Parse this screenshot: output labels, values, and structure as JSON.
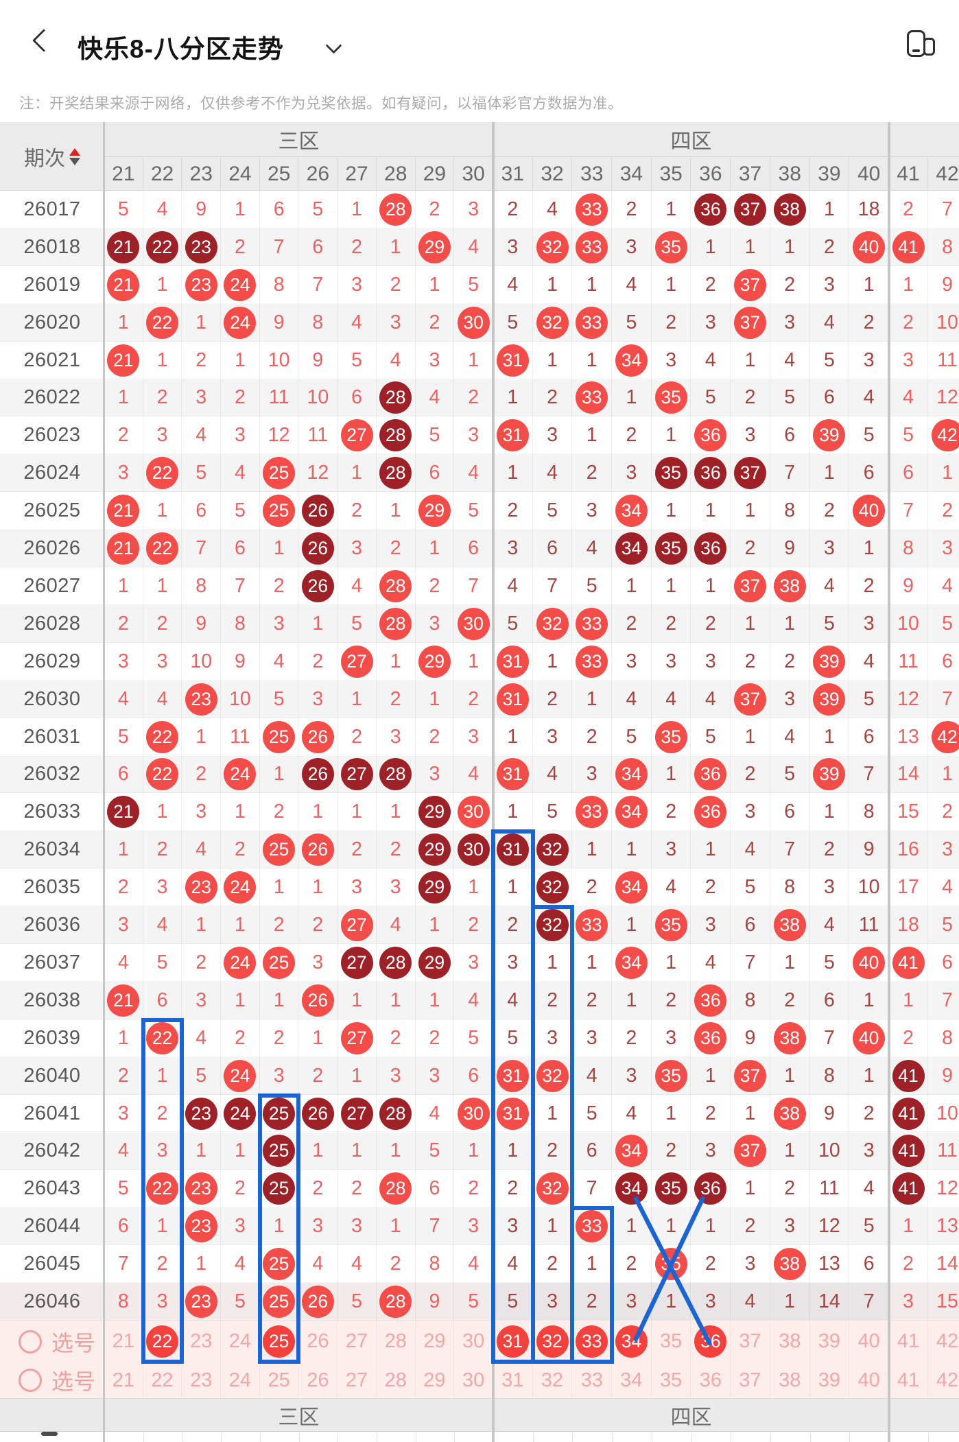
{
  "topbar": {
    "title": "快乐8-八分区走势",
    "back_icon": "chevron-left",
    "dropdown_icon": "chevron-down",
    "window_icon": "floating-window"
  },
  "note": "注：开奖结果来源于网络，仅供参考不作为兑奖依据。如有疑问，以福体彩官方数据为准。",
  "table": {
    "period_header": "期次",
    "sort_icon": "sort-up-down",
    "zone_headers": [
      {
        "label": "三区",
        "col_start": 21,
        "col_end": 30
      },
      {
        "label": "四区",
        "col_start": 31,
        "col_end": 40
      },
      {
        "label": "",
        "col_start": 41,
        "col_end": 42
      }
    ],
    "columns": [
      21,
      22,
      23,
      24,
      25,
      26,
      27,
      28,
      29,
      30,
      31,
      32,
      33,
      34,
      35,
      36,
      37,
      38,
      39,
      40,
      41,
      42
    ],
    "cell_legend": "plain string = omission count; B## = drawn ball (bright red); D## = drawn ball (dark red); S## = selected ball",
    "rows": [
      {
        "period": "26017",
        "cells": [
          "5",
          "4",
          "9",
          "1",
          "6",
          "5",
          "1",
          "B28",
          "2",
          "3",
          "2",
          "4",
          "B33",
          "2",
          "1",
          "D36",
          "D37",
          "D38",
          "1",
          "18",
          "2",
          "7"
        ]
      },
      {
        "period": "26018",
        "cells": [
          "D21",
          "D22",
          "D23",
          "2",
          "7",
          "6",
          "2",
          "1",
          "B29",
          "4",
          "3",
          "B32",
          "B33",
          "3",
          "B35",
          "1",
          "1",
          "1",
          "2",
          "B40",
          "B41",
          "8"
        ]
      },
      {
        "period": "26019",
        "cells": [
          "B21",
          "1",
          "B23",
          "B24",
          "8",
          "7",
          "3",
          "2",
          "1",
          "5",
          "4",
          "1",
          "1",
          "4",
          "1",
          "2",
          "B37",
          "2",
          "3",
          "1",
          "1",
          "9"
        ]
      },
      {
        "period": "26020",
        "cells": [
          "1",
          "B22",
          "1",
          "B24",
          "9",
          "8",
          "4",
          "3",
          "2",
          "B30",
          "5",
          "B32",
          "B33",
          "5",
          "2",
          "3",
          "B37",
          "3",
          "4",
          "2",
          "2",
          "10"
        ]
      },
      {
        "period": "26021",
        "cells": [
          "B21",
          "1",
          "2",
          "1",
          "10",
          "9",
          "5",
          "4",
          "3",
          "1",
          "B31",
          "1",
          "1",
          "B34",
          "3",
          "4",
          "1",
          "4",
          "5",
          "3",
          "3",
          "11"
        ]
      },
      {
        "period": "26022",
        "cells": [
          "1",
          "2",
          "3",
          "2",
          "11",
          "10",
          "6",
          "D28",
          "4",
          "2",
          "1",
          "2",
          "B33",
          "1",
          "B35",
          "5",
          "2",
          "5",
          "6",
          "4",
          "4",
          "12"
        ]
      },
      {
        "period": "26023",
        "cells": [
          "2",
          "3",
          "4",
          "3",
          "12",
          "11",
          "B27",
          "D28",
          "5",
          "3",
          "B31",
          "3",
          "1",
          "2",
          "1",
          "B36",
          "3",
          "6",
          "B39",
          "5",
          "5",
          "B42"
        ]
      },
      {
        "period": "26024",
        "cells": [
          "3",
          "B22",
          "5",
          "4",
          "B25",
          "12",
          "1",
          "D28",
          "6",
          "4",
          "1",
          "4",
          "2",
          "3",
          "D35",
          "D36",
          "D37",
          "7",
          "1",
          "6",
          "6",
          "1"
        ]
      },
      {
        "period": "26025",
        "cells": [
          "B21",
          "1",
          "6",
          "5",
          "B25",
          "D26",
          "2",
          "1",
          "B29",
          "5",
          "2",
          "5",
          "3",
          "B34",
          "1",
          "1",
          "1",
          "8",
          "2",
          "B40",
          "7",
          "2"
        ]
      },
      {
        "period": "26026",
        "cells": [
          "B21",
          "B22",
          "7",
          "6",
          "1",
          "D26",
          "3",
          "2",
          "1",
          "6",
          "3",
          "6",
          "4",
          "D34",
          "D35",
          "D36",
          "2",
          "9",
          "3",
          "1",
          "8",
          "3"
        ]
      },
      {
        "period": "26027",
        "cells": [
          "1",
          "1",
          "8",
          "7",
          "2",
          "D26",
          "4",
          "B28",
          "2",
          "7",
          "4",
          "7",
          "5",
          "1",
          "1",
          "1",
          "B37",
          "B38",
          "4",
          "2",
          "9",
          "4"
        ]
      },
      {
        "period": "26028",
        "cells": [
          "2",
          "2",
          "9",
          "8",
          "3",
          "1",
          "5",
          "B28",
          "3",
          "B30",
          "5",
          "B32",
          "B33",
          "2",
          "2",
          "2",
          "1",
          "1",
          "5",
          "3",
          "10",
          "5"
        ]
      },
      {
        "period": "26029",
        "cells": [
          "3",
          "3",
          "10",
          "9",
          "4",
          "2",
          "B27",
          "1",
          "B29",
          "1",
          "B31",
          "1",
          "B33",
          "3",
          "3",
          "3",
          "2",
          "2",
          "B39",
          "4",
          "11",
          "6"
        ]
      },
      {
        "period": "26030",
        "cells": [
          "4",
          "4",
          "B23",
          "10",
          "5",
          "3",
          "1",
          "2",
          "1",
          "2",
          "B31",
          "2",
          "1",
          "4",
          "4",
          "4",
          "B37",
          "3",
          "B39",
          "5",
          "12",
          "7"
        ]
      },
      {
        "period": "26031",
        "cells": [
          "5",
          "B22",
          "1",
          "11",
          "B25",
          "B26",
          "2",
          "3",
          "2",
          "3",
          "1",
          "3",
          "2",
          "5",
          "B35",
          "5",
          "1",
          "4",
          "1",
          "6",
          "13",
          "B42"
        ]
      },
      {
        "period": "26032",
        "cells": [
          "6",
          "B22",
          "2",
          "B24",
          "1",
          "D26",
          "D27",
          "D28",
          "3",
          "4",
          "B31",
          "4",
          "3",
          "B34",
          "1",
          "B36",
          "2",
          "5",
          "B39",
          "7",
          "14",
          "1"
        ]
      },
      {
        "period": "26033",
        "cells": [
          "D21",
          "1",
          "3",
          "1",
          "2",
          "1",
          "1",
          "1",
          "D29",
          "B30",
          "1",
          "5",
          "B33",
          "B34",
          "2",
          "B36",
          "3",
          "6",
          "1",
          "8",
          "15",
          "2"
        ]
      },
      {
        "period": "26034",
        "cells": [
          "1",
          "2",
          "4",
          "2",
          "B25",
          "B26",
          "2",
          "2",
          "D29",
          "D30",
          "D31",
          "D32",
          "1",
          "1",
          "3",
          "1",
          "4",
          "7",
          "2",
          "9",
          "16",
          "3"
        ]
      },
      {
        "period": "26035",
        "cells": [
          "2",
          "3",
          "B23",
          "B24",
          "1",
          "1",
          "3",
          "3",
          "D29",
          "1",
          "1",
          "D32",
          "2",
          "B34",
          "4",
          "2",
          "5",
          "8",
          "3",
          "10",
          "17",
          "4"
        ]
      },
      {
        "period": "26036",
        "cells": [
          "3",
          "4",
          "1",
          "1",
          "2",
          "2",
          "B27",
          "4",
          "1",
          "2",
          "2",
          "D32",
          "B33",
          "1",
          "B35",
          "3",
          "6",
          "B38",
          "4",
          "11",
          "18",
          "5"
        ]
      },
      {
        "period": "26037",
        "cells": [
          "4",
          "5",
          "2",
          "B24",
          "B25",
          "3",
          "D27",
          "D28",
          "D29",
          "3",
          "3",
          "1",
          "1",
          "B34",
          "1",
          "4",
          "7",
          "1",
          "5",
          "B40",
          "B41",
          "6"
        ]
      },
      {
        "period": "26038",
        "cells": [
          "B21",
          "6",
          "3",
          "1",
          "1",
          "B26",
          "1",
          "1",
          "1",
          "4",
          "4",
          "2",
          "2",
          "1",
          "2",
          "B36",
          "8",
          "2",
          "6",
          "1",
          "1",
          "7"
        ]
      },
      {
        "period": "26039",
        "cells": [
          "1",
          "B22",
          "4",
          "2",
          "2",
          "1",
          "B27",
          "2",
          "2",
          "5",
          "5",
          "3",
          "3",
          "2",
          "3",
          "B36",
          "9",
          "B38",
          "7",
          "B40",
          "2",
          "8"
        ]
      },
      {
        "period": "26040",
        "cells": [
          "2",
          "1",
          "5",
          "B24",
          "3",
          "2",
          "1",
          "3",
          "3",
          "6",
          "B31",
          "B32",
          "4",
          "3",
          "B35",
          "1",
          "B37",
          "1",
          "8",
          "1",
          "D41",
          "9"
        ]
      },
      {
        "period": "26041",
        "cells": [
          "3",
          "2",
          "D23",
          "D24",
          "D25",
          "D26",
          "D27",
          "D28",
          "4",
          "B30",
          "B31",
          "1",
          "5",
          "4",
          "1",
          "2",
          "1",
          "B38",
          "9",
          "2",
          "D41",
          "10"
        ]
      },
      {
        "period": "26042",
        "cells": [
          "4",
          "3",
          "1",
          "1",
          "D25",
          "1",
          "1",
          "1",
          "5",
          "1",
          "1",
          "2",
          "6",
          "B34",
          "2",
          "3",
          "B37",
          "1",
          "10",
          "3",
          "D41",
          "11"
        ]
      },
      {
        "period": "26043",
        "cells": [
          "5",
          "B22",
          "B23",
          "2",
          "D25",
          "2",
          "2",
          "B28",
          "6",
          "2",
          "2",
          "B32",
          "7",
          "D34",
          "D35",
          "D36",
          "1",
          "2",
          "11",
          "4",
          "D41",
          "12"
        ]
      },
      {
        "period": "26044",
        "cells": [
          "6",
          "1",
          "B23",
          "3",
          "1",
          "3",
          "3",
          "1",
          "7",
          "3",
          "3",
          "1",
          "B33",
          "1",
          "1",
          "1",
          "2",
          "3",
          "12",
          "5",
          "1",
          "13"
        ]
      },
      {
        "period": "26045",
        "cells": [
          "7",
          "2",
          "1",
          "4",
          "B25",
          "4",
          "4",
          "2",
          "8",
          "4",
          "4",
          "2",
          "1",
          "2",
          "B35",
          "2",
          "3",
          "B38",
          "13",
          "6",
          "2",
          "14"
        ]
      },
      {
        "period": "26046",
        "cells": [
          "8",
          "3",
          "B23",
          "5",
          "B25",
          "B26",
          "5",
          "B28",
          "9",
          "5",
          "5",
          "3",
          "2",
          "3",
          "1",
          "3",
          "4",
          "1",
          "14",
          "7",
          "3",
          "15"
        ]
      }
    ],
    "selection_rows": [
      {
        "label": "选号",
        "cells": [
          "21",
          "S22",
          "23",
          "24",
          "S25",
          "26",
          "27",
          "28",
          "29",
          "30",
          "S31",
          "S32",
          "S33",
          "S34",
          "35",
          "S36",
          "37",
          "38",
          "39",
          "40",
          "41",
          "42"
        ]
      },
      {
        "label": "选号",
        "cells": [
          "21",
          "22",
          "23",
          "24",
          "25",
          "26",
          "27",
          "28",
          "29",
          "30",
          "31",
          "32",
          "33",
          "34",
          "35",
          "36",
          "37",
          "38",
          "39",
          "40",
          "41",
          "42"
        ]
      }
    ],
    "footer_zones": [
      {
        "label": "三区"
      },
      {
        "label": "四区"
      }
    ]
  },
  "annotations": {
    "boxes": [
      {
        "col": 22,
        "from_period": "26039"
      },
      {
        "col": 25,
        "from_period": "26041"
      },
      {
        "col": 31,
        "from_period": "26034"
      },
      {
        "col": 32,
        "from_period": "26036"
      },
      {
        "col": 33,
        "from_period": "26044"
      }
    ],
    "cross": {
      "from_period": "26043",
      "left_col": 34,
      "right_col": 36
    }
  },
  "colors": {
    "bright_ball": "#f44c48",
    "dark_ball": "#9d2126",
    "selected_ball": "#f4413d",
    "zone3_text": "#ef6161",
    "zone4_text": "#a64440",
    "pink_text": "#f3a7a7",
    "pink_label": "#efa0a0",
    "blue_annotation": "#1b64d4",
    "header_bg": "#ebebeb",
    "row_shade": "#f4f4f5",
    "latest_row_bg": "#f3eaea",
    "latest_row_zone4_bg": "#e9e4e6",
    "selection_row_bg": "#fdedeb",
    "sort_up": "#e02020",
    "sort_down": "#555555"
  }
}
